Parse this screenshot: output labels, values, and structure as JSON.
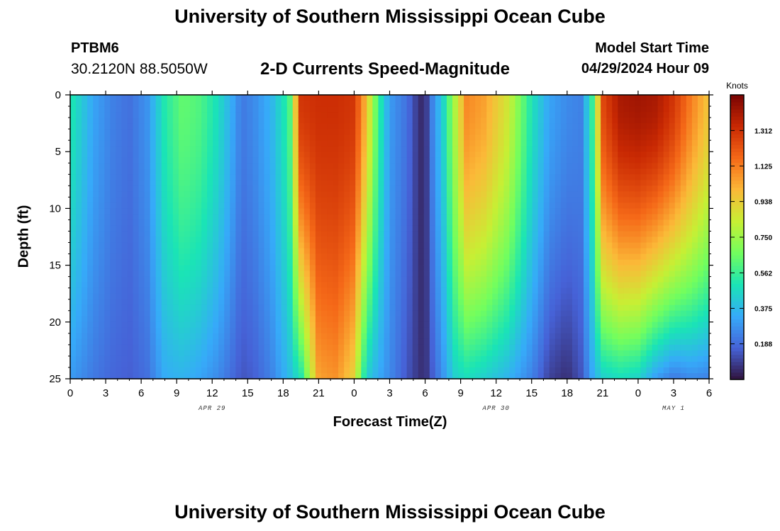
{
  "header": {
    "title": "University of Southern Mississippi Ocean Cube",
    "station": "PTBM6",
    "coords": "30.2120N  88.5050W",
    "subtitle": "2-D Currents Speed-Magnitude",
    "start_label": "Model Start Time",
    "start_value": "04/29/2024 Hour 09"
  },
  "footer": {
    "title": "University of Southern Mississippi Ocean Cube"
  },
  "chart_data": {
    "type": "heatmap",
    "title": "2-D Currents Speed-Magnitude",
    "xlabel": "Forecast Time(Z)",
    "ylabel": "Depth (ft)",
    "x_ticks": [
      "0",
      "3",
      "6",
      "9",
      "12",
      "15",
      "18",
      "21",
      "0",
      "3",
      "6",
      "9",
      "12",
      "15",
      "18",
      "21",
      "0",
      "3",
      "6"
    ],
    "x_range_hours": [
      0,
      54
    ],
    "date_labels": [
      {
        "text": "APR 29",
        "hour": 12
      },
      {
        "text": "APR 30",
        "hour": 36
      },
      {
        "text": "MAY 1",
        "hour": 51
      }
    ],
    "y_ticks": [
      0,
      5,
      10,
      15,
      20,
      25
    ],
    "ylim": [
      0,
      25
    ],
    "y_inverted": true,
    "colorbar": {
      "title": "Knots",
      "ticks": [
        "0.188",
        "0.375",
        "0.562",
        "0.750",
        "0.938",
        "1.125",
        "1.312"
      ],
      "min": 0.0,
      "max": 1.5,
      "colors": [
        "#30123b",
        "#4662d7",
        "#36aaf9",
        "#1ae4b6",
        "#72fe5e",
        "#c7ef34",
        "#fbb938",
        "#f56918",
        "#c92903",
        "#7a0403"
      ]
    },
    "speed_profiles_knots": {
      "hour": [
        0,
        2,
        3.5,
        5,
        6.5,
        8,
        9.5,
        11,
        12.5,
        13.5,
        14.5,
        15.5,
        17,
        18.5,
        19.5,
        21,
        22.5,
        24,
        25,
        26,
        27,
        28.5,
        29.5,
        30,
        30.5,
        31.5,
        32.5,
        33.5,
        35,
        37,
        39,
        40.5,
        42,
        43.2,
        44.2,
        45,
        46.5,
        48,
        49.5,
        51,
        52.5,
        54
      ],
      "surface": [
        0.52,
        0.32,
        0.24,
        0.2,
        0.28,
        0.52,
        0.64,
        0.6,
        0.48,
        0.36,
        0.22,
        0.26,
        0.36,
        0.56,
        1.3,
        1.32,
        1.32,
        1.3,
        1.0,
        0.58,
        0.3,
        0.2,
        0.06,
        0.05,
        0.22,
        0.44,
        0.78,
        1.1,
        1.05,
        0.86,
        0.5,
        0.32,
        0.26,
        0.24,
        0.58,
        1.25,
        1.4,
        1.42,
        1.4,
        1.3,
        1.12,
        0.96
      ],
      "bottom": [
        0.3,
        0.22,
        0.18,
        0.16,
        0.2,
        0.34,
        0.36,
        0.32,
        0.26,
        0.2,
        0.14,
        0.16,
        0.24,
        0.38,
        0.5,
        1.05,
        1.08,
        0.92,
        0.44,
        0.34,
        0.26,
        0.14,
        0.07,
        0.06,
        0.14,
        0.28,
        0.44,
        0.48,
        0.44,
        0.36,
        0.24,
        0.1,
        0.06,
        0.14,
        0.34,
        0.44,
        0.48,
        0.45,
        0.3,
        0.22,
        0.26,
        0.24
      ]
    }
  }
}
